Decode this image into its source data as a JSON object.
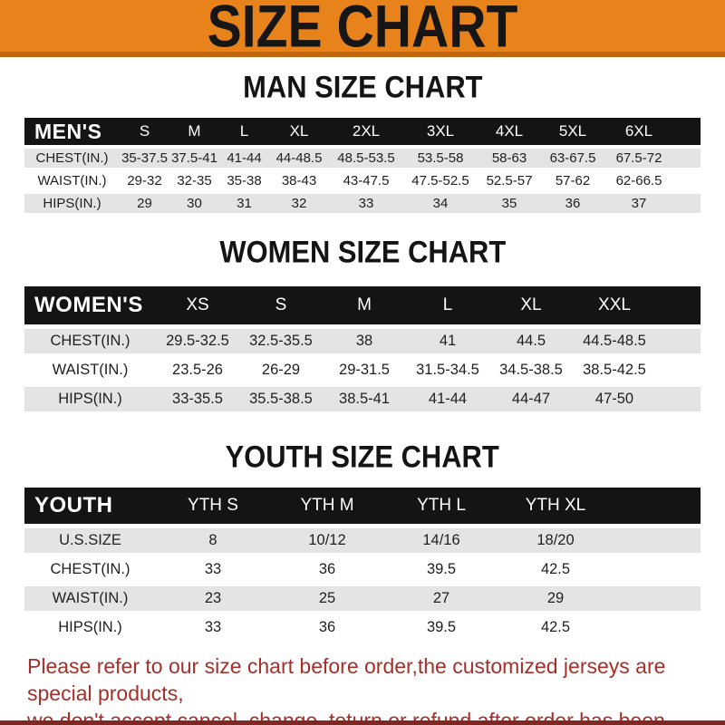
{
  "banner": {
    "title": "SIZE CHART"
  },
  "men": {
    "heading": "MAN SIZE CHART",
    "label": "MEN'S",
    "sizes": [
      "S",
      "M",
      "L",
      "XL",
      "2XL",
      "3XL",
      "4XL",
      "5XL",
      "6XL"
    ],
    "rows": [
      {
        "label": "CHEST(IN.)",
        "values": [
          "35-37.5",
          "37.5-41",
          "41-44",
          "44-48.5",
          "48.5-53.5",
          "53.5-58",
          "58-63",
          "63-67.5",
          "67.5-72"
        ]
      },
      {
        "label": "WAIST(IN.)",
        "values": [
          "29-32",
          "32-35",
          "35-38",
          "38-43",
          "43-47.5",
          "47.5-52.5",
          "52.5-57",
          "57-62",
          "62-66.5"
        ]
      },
      {
        "label": "HIPS(IN.)",
        "values": [
          "29",
          "30",
          "31",
          "32",
          "33",
          "34",
          "35",
          "36",
          "37"
        ]
      }
    ]
  },
  "women": {
    "heading": "WOMEN SIZE CHART",
    "label": "WOMEN'S",
    "sizes": [
      "XS",
      "S",
      "M",
      "L",
      "XL",
      "XXL"
    ],
    "rows": [
      {
        "label": "CHEST(IN.)",
        "values": [
          "29.5-32.5",
          "32.5-35.5",
          "38",
          "41",
          "44.5",
          "44.5-48.5"
        ]
      },
      {
        "label": "WAIST(IN.)",
        "values": [
          "23.5-26",
          "26-29",
          "29-31.5",
          "31.5-34.5",
          "34.5-38.5",
          "38.5-42.5"
        ]
      },
      {
        "label": "HIPS(IN.)",
        "values": [
          "33-35.5",
          "35.5-38.5",
          "38.5-41",
          "41-44",
          "44-47",
          "47-50"
        ]
      }
    ]
  },
  "youth": {
    "heading": "YOUTH SIZE CHART",
    "label": "YOUTH",
    "sizes": [
      "YTH S",
      "YTH M",
      "YTH L",
      "YTH XL"
    ],
    "rows": [
      {
        "label": "U.S.SIZE",
        "values": [
          "8",
          "10/12",
          "14/16",
          "18/20"
        ]
      },
      {
        "label": "CHEST(IN.)",
        "values": [
          "33",
          "36",
          "39.5",
          "42.5"
        ]
      },
      {
        "label": "WAIST(IN.)",
        "values": [
          "23",
          "25",
          "27",
          "29"
        ]
      },
      {
        "label": "HIPS(IN.)",
        "values": [
          "33",
          "36",
          "39.5",
          "42.5"
        ]
      }
    ]
  },
  "footer": {
    "line1": "Please refer to our size chart before order,the customized jerseys are special products,",
    "line2": "we don't accept cancel, change, teturn or refund after order has been placed!"
  },
  "colors": {
    "banner_orange": "#E8831C",
    "banner_edge": "#C0660E",
    "header_black": "#141414",
    "stripe_gray": "#E4E4E4",
    "footer_red": "#A63029",
    "bottom_band": "#7E2723"
  }
}
